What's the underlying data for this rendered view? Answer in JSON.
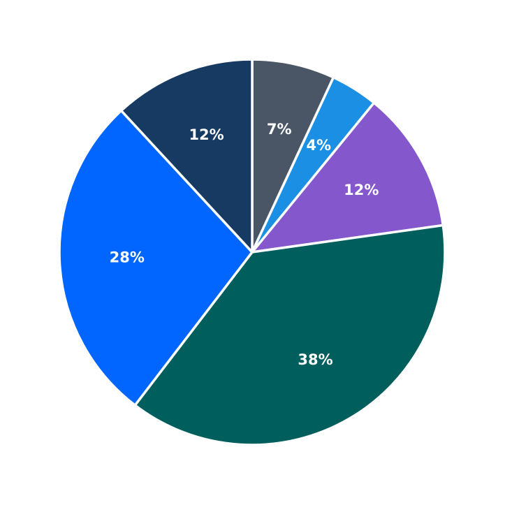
{
  "chart_data": {
    "type": "pie",
    "values": [
      7,
      4,
      12,
      38,
      28,
      12
    ],
    "value_labels": [
      "7%",
      "4%",
      "12%",
      "38%",
      "28%",
      "12%"
    ],
    "colors": [
      "#4a5565",
      "#1a8fe3",
      "#8457cc",
      "#005f5d",
      "#0066ff",
      "#163a62"
    ],
    "start_angle": 90,
    "direction": "clockwise"
  }
}
